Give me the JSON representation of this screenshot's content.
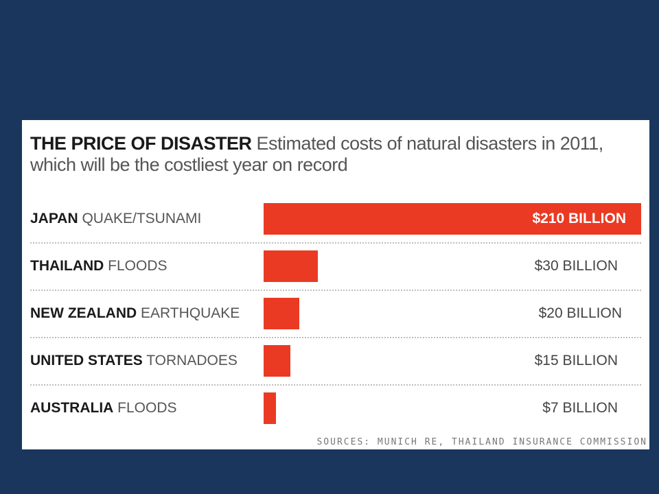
{
  "chart_data": {
    "type": "bar",
    "orientation": "horizontal",
    "title": "THE PRICE OF DISASTER",
    "subtitle": "Estimated costs of natural disasters in 2011, which will be the costliest year on record",
    "categories": [
      {
        "place": "JAPAN",
        "event": "QUAKE/TSUNAMI"
      },
      {
        "place": "THAILAND",
        "event": "FLOODS"
      },
      {
        "place": "NEW ZEALAND",
        "event": "EARTHQUAKE"
      },
      {
        "place": "UNITED STATES",
        "event": "TORNADOES"
      },
      {
        "place": "AUSTRALIA",
        "event": "FLOODS"
      }
    ],
    "values": [
      210,
      30,
      20,
      15,
      7
    ],
    "value_labels": [
      "$210 BILLION",
      "$30 BILLION",
      "$20 BILLION",
      "$15 BILLION",
      "$7 BILLION"
    ],
    "source": "SOURCES: MUNICH RE, THAILAND INSURANCE COMMISSION",
    "bar_color": "#ea3a23",
    "grid": false,
    "legend": "none"
  }
}
